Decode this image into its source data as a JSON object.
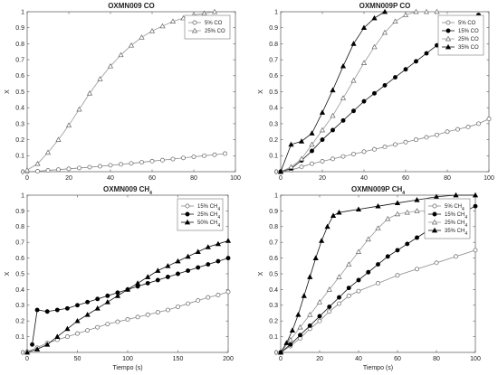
{
  "chart_data": [
    {
      "type": "line",
      "title": "OXMN009 CO",
      "xlabel": "",
      "ylabel": "X",
      "xlim": [
        0,
        100
      ],
      "ylim": [
        0,
        1
      ],
      "xticks": [
        "0",
        "20",
        "40",
        "60",
        "80",
        "100"
      ],
      "yticks": [
        "0",
        "0.1",
        "0.2",
        "0.3",
        "0.4",
        "0.5",
        "0.6",
        "0.7",
        "0.8",
        "0.9",
        "1"
      ],
      "legend_position": "top-right",
      "series": [
        {
          "name": "5% CO",
          "marker": "circle-open",
          "x": [
            0,
            5,
            10,
            15,
            20,
            25,
            30,
            35,
            40,
            45,
            50,
            55,
            60,
            65,
            70,
            75,
            80,
            85,
            90,
            95
          ],
          "y": [
            0,
            0.003,
            0.008,
            0.013,
            0.018,
            0.023,
            0.028,
            0.034,
            0.04,
            0.046,
            0.052,
            0.059,
            0.066,
            0.072,
            0.079,
            0.086,
            0.093,
            0.1,
            0.106,
            0.113
          ]
        },
        {
          "name": "25% CO",
          "marker": "triangle-open",
          "x": [
            0,
            5,
            10,
            15,
            20,
            25,
            30,
            35,
            40,
            45,
            50,
            55,
            60,
            65,
            70,
            75,
            80,
            85,
            90
          ],
          "y": [
            0.01,
            0.05,
            0.12,
            0.2,
            0.29,
            0.39,
            0.49,
            0.58,
            0.66,
            0.73,
            0.79,
            0.84,
            0.88,
            0.91,
            0.94,
            0.96,
            0.98,
            0.99,
            1.0
          ]
        }
      ]
    },
    {
      "type": "line",
      "title": "OXMN009P CO",
      "xlabel": "",
      "ylabel": "X",
      "xlim": [
        0,
        100
      ],
      "ylim": [
        0,
        1
      ],
      "xticks": [
        "0",
        "20",
        "40",
        "60",
        "80",
        "100"
      ],
      "yticks": [
        "0",
        "0.1",
        "0.2",
        "0.3",
        "0.4",
        "0.5",
        "0.6",
        "0.7",
        "0.8",
        "0.9",
        "1"
      ],
      "legend_position": "top-right",
      "series": [
        {
          "name": "5% CO",
          "marker": "circle-open",
          "x": [
            0,
            5,
            10,
            15,
            20,
            25,
            30,
            35,
            40,
            45,
            50,
            55,
            60,
            65,
            70,
            75,
            80,
            85,
            90,
            95,
            100
          ],
          "y": [
            0,
            0.01,
            0.03,
            0.05,
            0.065,
            0.08,
            0.095,
            0.11,
            0.125,
            0.14,
            0.155,
            0.17,
            0.185,
            0.2,
            0.215,
            0.23,
            0.25,
            0.265,
            0.28,
            0.3,
            0.33
          ]
        },
        {
          "name": "15% CO",
          "marker": "circle-filled",
          "x": [
            0,
            5,
            10,
            15,
            20,
            25,
            30,
            35,
            40,
            45,
            50,
            55,
            60,
            65,
            70,
            75,
            80,
            85,
            90,
            95
          ],
          "y": [
            0,
            0.02,
            0.07,
            0.13,
            0.2,
            0.26,
            0.32,
            0.38,
            0.44,
            0.49,
            0.54,
            0.59,
            0.64,
            0.69,
            0.74,
            0.79,
            0.84,
            0.88,
            0.92,
            0.98
          ]
        },
        {
          "name": "25% CO",
          "marker": "triangle-open",
          "x": [
            0,
            5,
            10,
            15,
            20,
            25,
            30,
            35,
            40,
            45,
            50,
            55,
            60,
            65,
            70,
            75
          ],
          "y": [
            0,
            0.03,
            0.08,
            0.17,
            0.26,
            0.35,
            0.46,
            0.57,
            0.68,
            0.78,
            0.87,
            0.94,
            0.98,
            1.0,
            1.0,
            1.0
          ]
        },
        {
          "name": "35% CO",
          "marker": "triangle-filled",
          "x": [
            0,
            5,
            10,
            15,
            20,
            25,
            30,
            35,
            40,
            45,
            50
          ],
          "y": [
            0,
            0.17,
            0.19,
            0.24,
            0.37,
            0.51,
            0.66,
            0.8,
            0.9,
            0.96,
            1.0
          ]
        }
      ]
    },
    {
      "type": "line",
      "title": "OXMN009 CH",
      "title_subscript": "4",
      "xlabel": "Tiempo (s)",
      "ylabel": "X",
      "xlim": [
        0,
        200
      ],
      "ylim": [
        0,
        1
      ],
      "xticks": [
        "0",
        "50",
        "100",
        "150",
        "200"
      ],
      "yticks": [
        "0",
        "0.1",
        "0.2",
        "0.3",
        "0.4",
        "0.5",
        "0.6",
        "0.7",
        "0.8",
        "0.9",
        "1"
      ],
      "legend_position": "top-right",
      "series": [
        {
          "name": "15% CH",
          "name_subscript": "4",
          "marker": "circle-open",
          "x": [
            0,
            10,
            20,
            30,
            40,
            50,
            60,
            70,
            80,
            90,
            100,
            110,
            120,
            130,
            140,
            150,
            160,
            170,
            180,
            190,
            200
          ],
          "y": [
            0.005,
            0.03,
            0.06,
            0.08,
            0.1,
            0.12,
            0.14,
            0.16,
            0.18,
            0.195,
            0.21,
            0.225,
            0.24,
            0.255,
            0.27,
            0.29,
            0.31,
            0.33,
            0.35,
            0.365,
            0.385
          ]
        },
        {
          "name": "25% CH",
          "name_subscript": "4",
          "marker": "circle-filled",
          "x": [
            5,
            10,
            20,
            30,
            40,
            50,
            60,
            70,
            80,
            90,
            100,
            110,
            120,
            130,
            140,
            150,
            160,
            170,
            180,
            190,
            200
          ],
          "y": [
            0.05,
            0.27,
            0.26,
            0.27,
            0.28,
            0.3,
            0.32,
            0.34,
            0.36,
            0.38,
            0.4,
            0.42,
            0.44,
            0.46,
            0.48,
            0.5,
            0.52,
            0.54,
            0.56,
            0.58,
            0.6
          ]
        },
        {
          "name": "50% CH",
          "name_subscript": "4",
          "marker": "triangle-filled",
          "x": [
            0,
            10,
            20,
            30,
            40,
            50,
            60,
            70,
            80,
            90,
            100,
            110,
            120,
            130,
            140,
            150,
            160,
            170,
            180,
            190,
            200
          ],
          "y": [
            0,
            0.02,
            0.05,
            0.1,
            0.15,
            0.2,
            0.24,
            0.28,
            0.32,
            0.36,
            0.4,
            0.44,
            0.48,
            0.52,
            0.55,
            0.58,
            0.61,
            0.64,
            0.67,
            0.69,
            0.71
          ]
        }
      ]
    },
    {
      "type": "line",
      "title": "OXMN009P CH",
      "title_subscript": "4",
      "xlabel": "Tiempo (s)",
      "ylabel": "X",
      "xlim": [
        0,
        100
      ],
      "ylim": [
        0,
        1
      ],
      "xticks": [
        "0",
        "20",
        "40",
        "60",
        "80",
        "100"
      ],
      "yticks": [
        "0",
        "0.1",
        "0.2",
        "0.3",
        "0.4",
        "0.5",
        "0.6",
        "0.7",
        "0.8",
        "0.9",
        "1"
      ],
      "legend_position": "top-right",
      "series": [
        {
          "name": "5% CH",
          "name_subscript": "4",
          "marker": "circle-open",
          "x": [
            0,
            5,
            10,
            15,
            20,
            25,
            30,
            35,
            40,
            50,
            60,
            70,
            80,
            90,
            100
          ],
          "y": [
            0,
            0.04,
            0.09,
            0.15,
            0.2,
            0.26,
            0.31,
            0.36,
            0.39,
            0.44,
            0.49,
            0.53,
            0.57,
            0.61,
            0.65
          ]
        },
        {
          "name": "15% CH",
          "name_subscript": "4",
          "marker": "circle-filled",
          "x": [
            0,
            5,
            10,
            15,
            20,
            25,
            30,
            35,
            40,
            45,
            50,
            55,
            60,
            65,
            70,
            75,
            80,
            85,
            90,
            95,
            100
          ],
          "y": [
            0,
            0.05,
            0.11,
            0.17,
            0.23,
            0.29,
            0.35,
            0.41,
            0.46,
            0.51,
            0.56,
            0.61,
            0.65,
            0.69,
            0.73,
            0.77,
            0.8,
            0.84,
            0.87,
            0.9,
            0.93
          ]
        },
        {
          "name": "25% CH",
          "name_subscript": "4",
          "marker": "triangle-open",
          "x": [
            0,
            5,
            10,
            15,
            20,
            25,
            30,
            35,
            40,
            45,
            50,
            55,
            60,
            65,
            70,
            75,
            80
          ],
          "y": [
            0,
            0.08,
            0.16,
            0.24,
            0.32,
            0.4,
            0.48,
            0.56,
            0.64,
            0.72,
            0.79,
            0.85,
            0.88,
            0.89,
            0.9,
            0.9,
            0.91
          ]
        },
        {
          "name": "35% CH",
          "name_subscript": "4",
          "marker": "triangle-filled",
          "x": [
            0,
            3,
            6,
            9,
            12,
            15,
            18,
            21,
            24,
            27,
            30,
            40,
            50,
            60,
            70,
            80,
            90,
            100
          ],
          "y": [
            0,
            0.06,
            0.14,
            0.24,
            0.36,
            0.48,
            0.6,
            0.71,
            0.8,
            0.87,
            0.89,
            0.91,
            0.93,
            0.95,
            0.97,
            0.99,
            1.0,
            1.0
          ]
        }
      ]
    }
  ]
}
